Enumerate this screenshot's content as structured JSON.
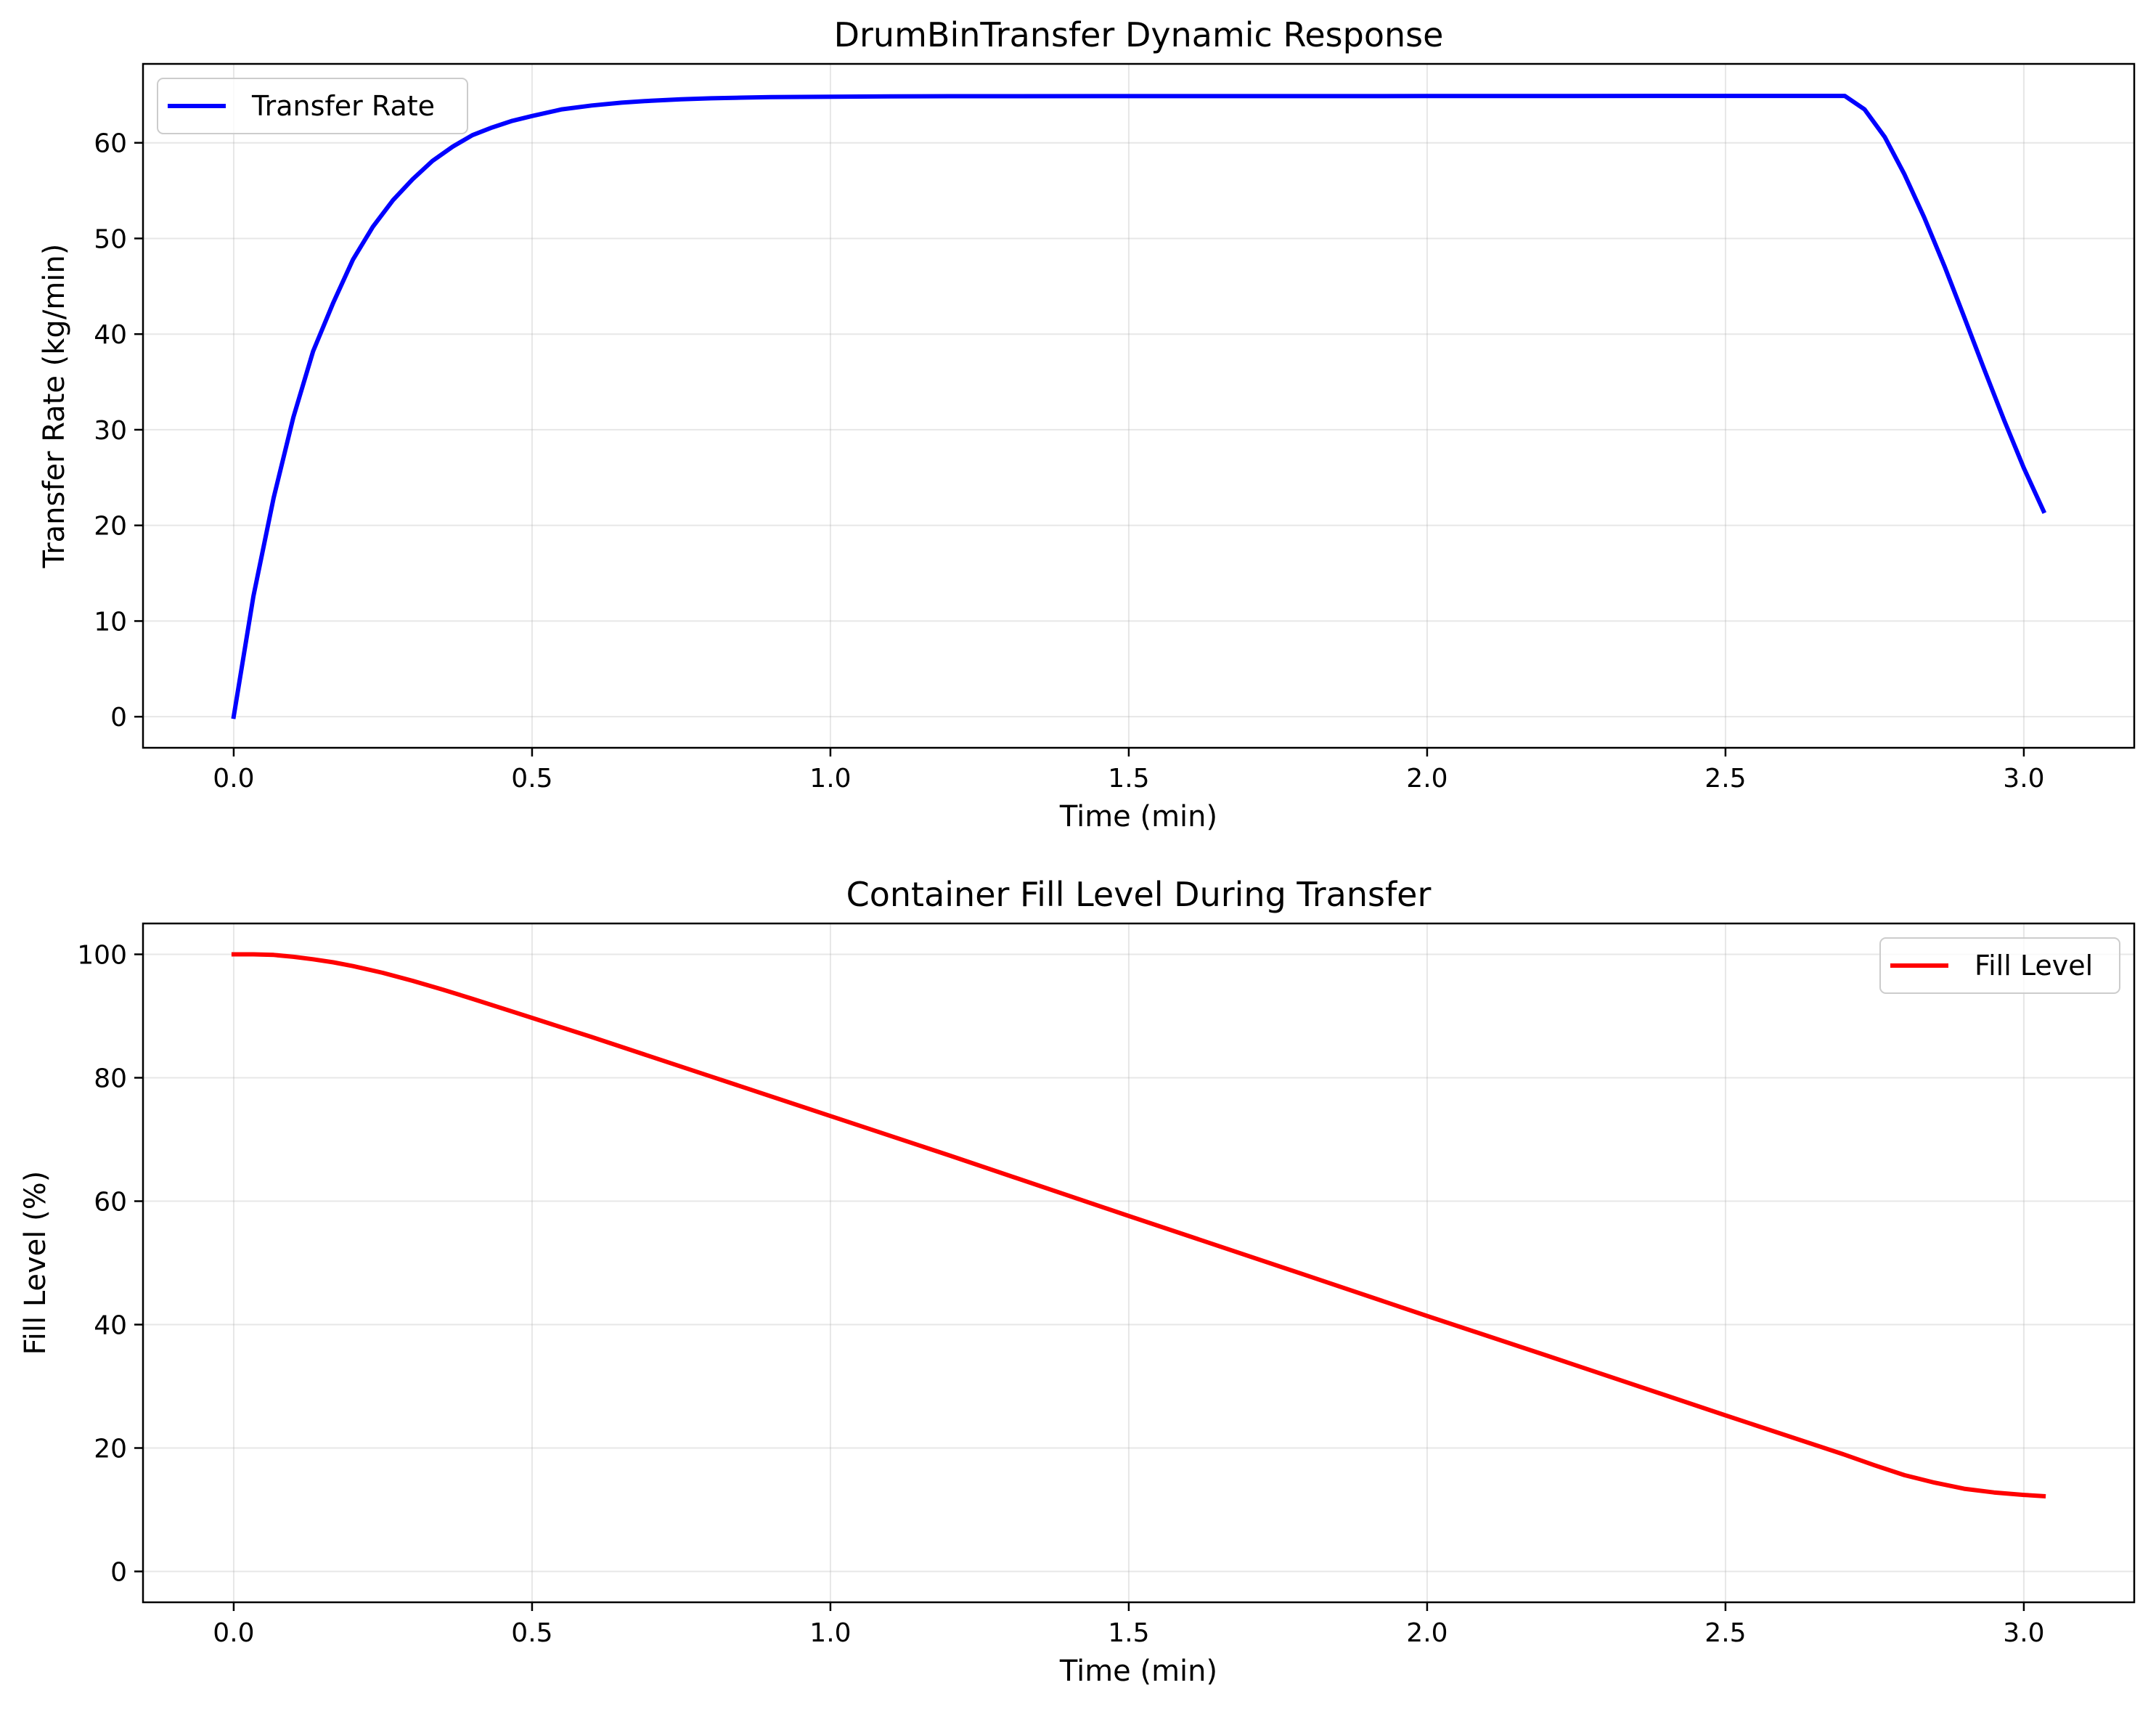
{
  "chart_data": [
    {
      "type": "line",
      "title": "DrumBinTransfer Dynamic Response",
      "xlabel": "Time (min)",
      "ylabel": "Transfer Rate (kg/min)",
      "xlim": [
        -0.152,
        3.185
      ],
      "ylim": [
        -3.25,
        68.25
      ],
      "xticks": [
        0.0,
        0.5,
        1.0,
        1.5,
        2.0,
        2.5,
        3.0
      ],
      "xtick_labels": [
        "0.0",
        "0.5",
        "1.0",
        "1.5",
        "2.0",
        "2.5",
        "3.0"
      ],
      "yticks": [
        0,
        10,
        20,
        30,
        40,
        50,
        60
      ],
      "ytick_labels": [
        "0",
        "10",
        "20",
        "30",
        "40",
        "50",
        "60"
      ],
      "grid": true,
      "legend_position": "top-left",
      "series": [
        {
          "name": "Transfer Rate",
          "color": "#0000ff",
          "x": [
            0.0,
            0.033,
            0.067,
            0.1,
            0.133,
            0.167,
            0.2,
            0.233,
            0.267,
            0.3,
            0.333,
            0.367,
            0.4,
            0.433,
            0.467,
            0.5,
            0.55,
            0.6,
            0.65,
            0.7,
            0.75,
            0.8,
            0.85,
            0.9,
            0.95,
            1.0,
            1.1,
            1.2,
            1.5,
            2.0,
            2.5,
            2.7,
            2.733,
            2.767,
            2.8,
            2.833,
            2.867,
            2.9,
            2.933,
            2.967,
            3.0,
            3.033
          ],
          "y": [
            0.0,
            12.6,
            22.9,
            31.3,
            38.2,
            43.3,
            47.8,
            51.2,
            54.0,
            56.2,
            58.1,
            59.6,
            60.8,
            61.6,
            62.3,
            62.8,
            63.5,
            63.9,
            64.2,
            64.4,
            64.55,
            64.65,
            64.72,
            64.77,
            64.8,
            64.82,
            64.85,
            64.87,
            64.88,
            64.89,
            64.9,
            64.9,
            63.5,
            60.6,
            56.7,
            52.2,
            47.1,
            41.8,
            36.4,
            31.0,
            26.0,
            21.5
          ]
        }
      ]
    },
    {
      "type": "line",
      "title": "Container Fill Level During Transfer",
      "xlabel": "Time (min)",
      "ylabel": "Fill Level (%)",
      "xlim": [
        -0.152,
        3.185
      ],
      "ylim": [
        -5.0,
        105.0
      ],
      "xticks": [
        0.0,
        0.5,
        1.0,
        1.5,
        2.0,
        2.5,
        3.0
      ],
      "xtick_labels": [
        "0.0",
        "0.5",
        "1.0",
        "1.5",
        "2.0",
        "2.5",
        "3.0"
      ],
      "yticks": [
        0,
        20,
        40,
        60,
        80,
        100
      ],
      "ytick_labels": [
        "0",
        "20",
        "40",
        "60",
        "80",
        "100"
      ],
      "grid": true,
      "legend_position": "top-right",
      "series": [
        {
          "name": "Fill Level",
          "color": "#ff0000",
          "x": [
            0.0,
            0.033,
            0.067,
            0.1,
            0.133,
            0.167,
            0.2,
            0.25,
            0.3,
            0.35,
            0.4,
            0.5,
            0.6,
            0.8,
            1.0,
            1.2,
            1.5,
            1.8,
            2.0,
            2.2,
            2.5,
            2.7,
            2.75,
            2.8,
            2.85,
            2.9,
            2.95,
            3.0,
            3.033
          ],
          "y": [
            100.0,
            100.0,
            99.9,
            99.6,
            99.2,
            98.7,
            98.1,
            97.0,
            95.7,
            94.3,
            92.8,
            89.7,
            86.6,
            80.2,
            73.8,
            67.4,
            57.6,
            47.9,
            41.4,
            35.0,
            25.3,
            18.9,
            17.2,
            15.6,
            14.4,
            13.4,
            12.8,
            12.4,
            12.2
          ]
        }
      ]
    }
  ]
}
